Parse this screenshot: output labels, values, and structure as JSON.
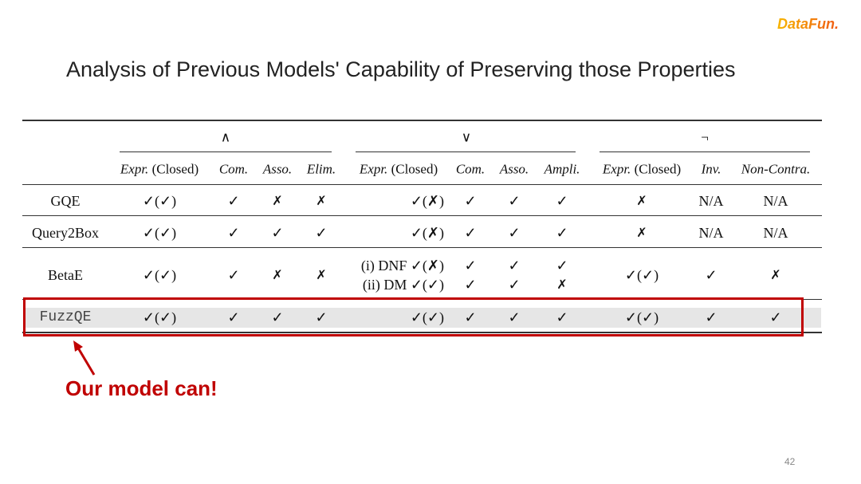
{
  "slide": {
    "title": "Analysis of Previous Models' Capability of Preserving those Properties",
    "logo": "DataFun.",
    "note": "Our model can!",
    "page_number": "42",
    "accent_color": "#c00000"
  },
  "table": {
    "groups": [
      "∧",
      "∨",
      "¬"
    ],
    "columns": [
      {
        "it": "Expr.",
        "rest": " (Closed)"
      },
      {
        "it": "Com.",
        "rest": ""
      },
      {
        "it": "Asso.",
        "rest": ""
      },
      {
        "it": "Elim.",
        "rest": ""
      },
      {
        "it": "Expr.",
        "rest": " (Closed)"
      },
      {
        "it": "Com.",
        "rest": ""
      },
      {
        "it": "Asso.",
        "rest": ""
      },
      {
        "it": "Ampli.",
        "rest": ""
      },
      {
        "it": "Expr.",
        "rest": " (Closed)"
      },
      {
        "it": "Inv.",
        "rest": ""
      },
      {
        "it": "Non-Contra.",
        "rest": ""
      }
    ],
    "rows": [
      {
        "model": "GQE",
        "cells": [
          [
            "✓(✓)"
          ],
          [
            "✓"
          ],
          [
            "✗"
          ],
          [
            "✗"
          ],
          [
            "✓(✗)"
          ],
          [
            "✓"
          ],
          [
            "✓"
          ],
          [
            "✓"
          ],
          [
            "✗"
          ],
          [
            "N/A"
          ],
          [
            "N/A"
          ]
        ]
      },
      {
        "model": "Query2Box",
        "cells": [
          [
            "✓(✓)"
          ],
          [
            "✓"
          ],
          [
            "✓"
          ],
          [
            "✓"
          ],
          [
            "✓(✗)"
          ],
          [
            "✓"
          ],
          [
            "✓"
          ],
          [
            "✓"
          ],
          [
            "✗"
          ],
          [
            "N/A"
          ],
          [
            "N/A"
          ]
        ]
      },
      {
        "model": "BetaE",
        "cells": [
          [
            "✓(✓)"
          ],
          [
            "✓"
          ],
          [
            "✗"
          ],
          [
            "✗"
          ],
          [
            "(i) DNF ✓(✗)",
            "(ii) DM ✓(✓)"
          ],
          [
            "✓",
            "✓"
          ],
          [
            "✓",
            "✓"
          ],
          [
            "✓",
            "✗"
          ],
          [
            "✓(✓)"
          ],
          [
            "✓"
          ],
          [
            "✗"
          ]
        ]
      },
      {
        "model": "FuzzQE",
        "highlight": true,
        "cells": [
          [
            "✓(✓)"
          ],
          [
            "✓"
          ],
          [
            "✓"
          ],
          [
            "✓"
          ],
          [
            "✓(✓)"
          ],
          [
            "✓"
          ],
          [
            "✓"
          ],
          [
            "✓"
          ],
          [
            "✓(✓)"
          ],
          [
            "✓"
          ],
          [
            "✓"
          ]
        ]
      }
    ]
  }
}
